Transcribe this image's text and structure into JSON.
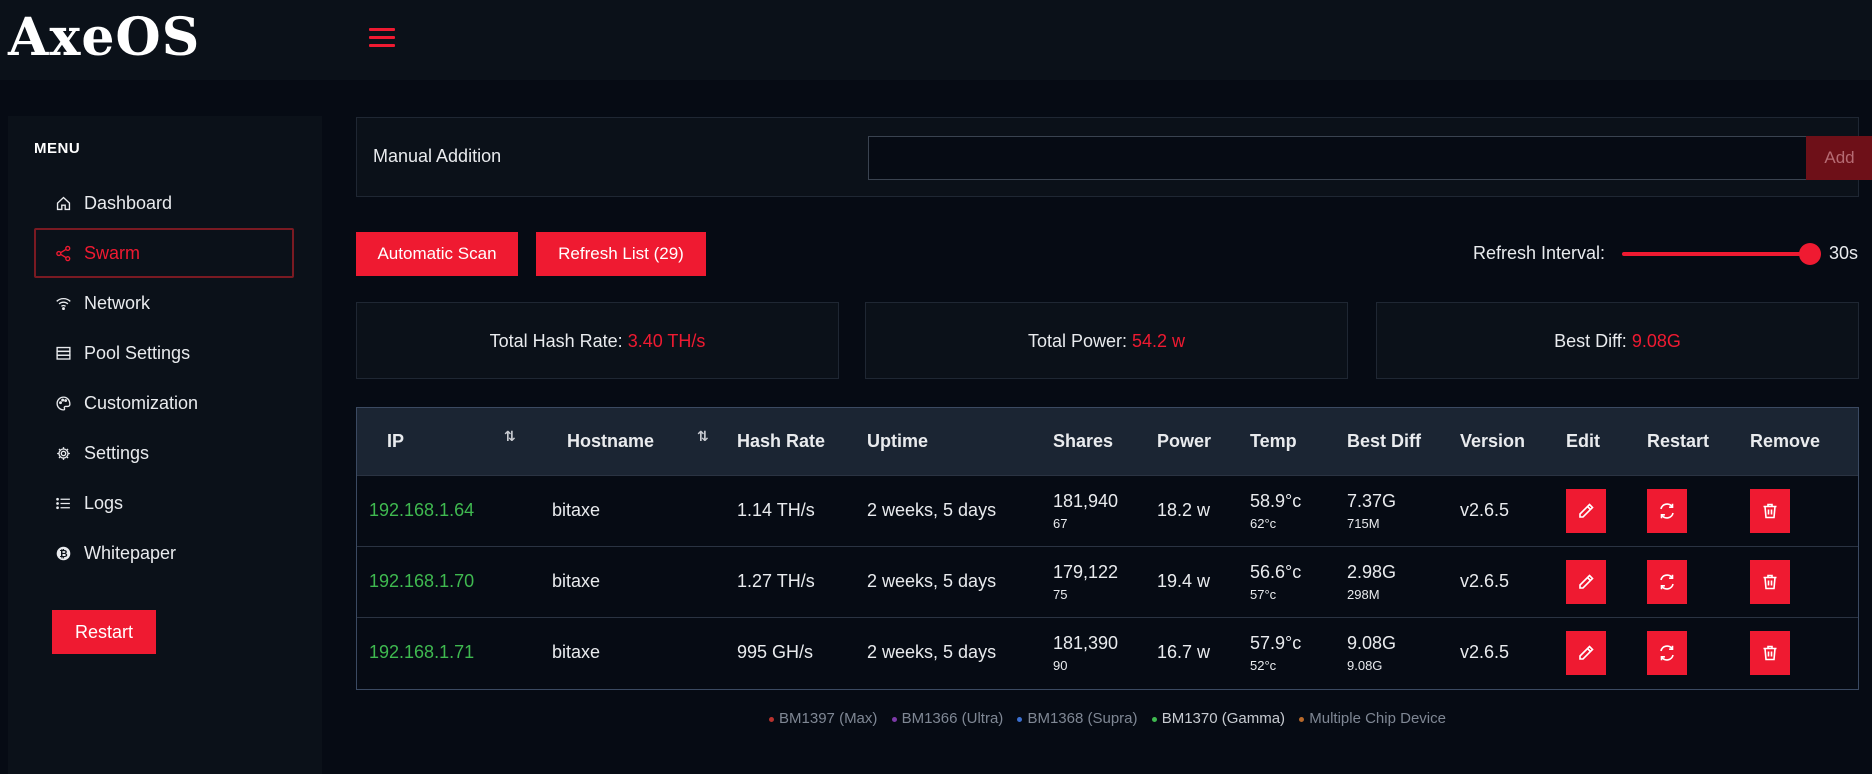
{
  "brand": {
    "logo_text": "AxeOS"
  },
  "sidebar": {
    "menu_title": "MENU",
    "items": [
      {
        "label": "Dashboard",
        "icon": "home-icon"
      },
      {
        "label": "Swarm",
        "icon": "share-icon",
        "active": true
      },
      {
        "label": "Network",
        "icon": "wifi-icon"
      },
      {
        "label": "Pool Settings",
        "icon": "server-icon"
      },
      {
        "label": "Customization",
        "icon": "palette-icon"
      },
      {
        "label": "Settings",
        "icon": "gear-icon"
      },
      {
        "label": "Logs",
        "icon": "list-icon"
      },
      {
        "label": "Whitepaper",
        "icon": "bitcoin-icon"
      }
    ],
    "restart_label": "Restart"
  },
  "manual": {
    "label": "Manual Addition",
    "value": "",
    "add_label": "Add"
  },
  "toolbar": {
    "scan_label": "Automatic Scan",
    "refresh_label": "Refresh List (29)",
    "interval_label": "Refresh Interval:",
    "interval_value": "30s",
    "interval_fraction": 1.0
  },
  "stats": {
    "hash_label": "Total Hash Rate:",
    "hash_value": "3.40 TH/s",
    "power_label": "Total Power:",
    "power_value": "54.2 w",
    "diff_label": "Best Diff:",
    "diff_value": "9.08G"
  },
  "table": {
    "headers": [
      "IP",
      "Hostname",
      "Hash Rate",
      "Uptime",
      "Shares",
      "Power",
      "Temp",
      "Best Diff",
      "Version",
      "Edit",
      "Restart",
      "Remove"
    ],
    "sort_glyph": "⇅",
    "rows": [
      {
        "ip": "192.168.1.64",
        "hostname": "bitaxe",
        "hashrate": "1.14 TH/s",
        "uptime": "2 weeks, 5 days",
        "shares": "181,940",
        "shares_sub": "67",
        "power": "18.2 w",
        "temp": "58.9°c",
        "temp_sub": "62°c",
        "best_diff": "7.37G",
        "best_diff_sub": "715M",
        "version": "v2.6.5"
      },
      {
        "ip": "192.168.1.70",
        "hostname": "bitaxe",
        "hashrate": "1.27 TH/s",
        "uptime": "2 weeks, 5 days",
        "shares": "179,122",
        "shares_sub": "75",
        "power": "19.4 w",
        "temp": "56.6°c",
        "temp_sub": "57°c",
        "best_diff": "2.98G",
        "best_diff_sub": "298M",
        "version": "v2.6.5"
      },
      {
        "ip": "192.168.1.71",
        "hostname": "bitaxe",
        "hashrate": "995 GH/s",
        "uptime": "2 weeks, 5 days",
        "shares": "181,390",
        "shares_sub": "90",
        "power": "16.7 w",
        "temp": "57.9°c",
        "temp_sub": "52°c",
        "best_diff": "9.08G",
        "best_diff_sub": "9.08G",
        "version": "v2.6.5"
      }
    ]
  },
  "legend": [
    {
      "label": "BM1397 (Max)",
      "color": "#b8322e"
    },
    {
      "label": "BM1366 (Ultra)",
      "color": "#7c3aa8"
    },
    {
      "label": "BM1368 (Supra)",
      "color": "#3b6fd0"
    },
    {
      "label": "BM1370 (Gamma)",
      "color": "#3fb950",
      "highlight": true
    },
    {
      "label": "Multiple Chip Device",
      "color": "#b8692a"
    }
  ],
  "colors": {
    "accent": "#ef1a31",
    "ip": "#3fb950",
    "background": "#060b14",
    "panel": "#0b1119"
  }
}
